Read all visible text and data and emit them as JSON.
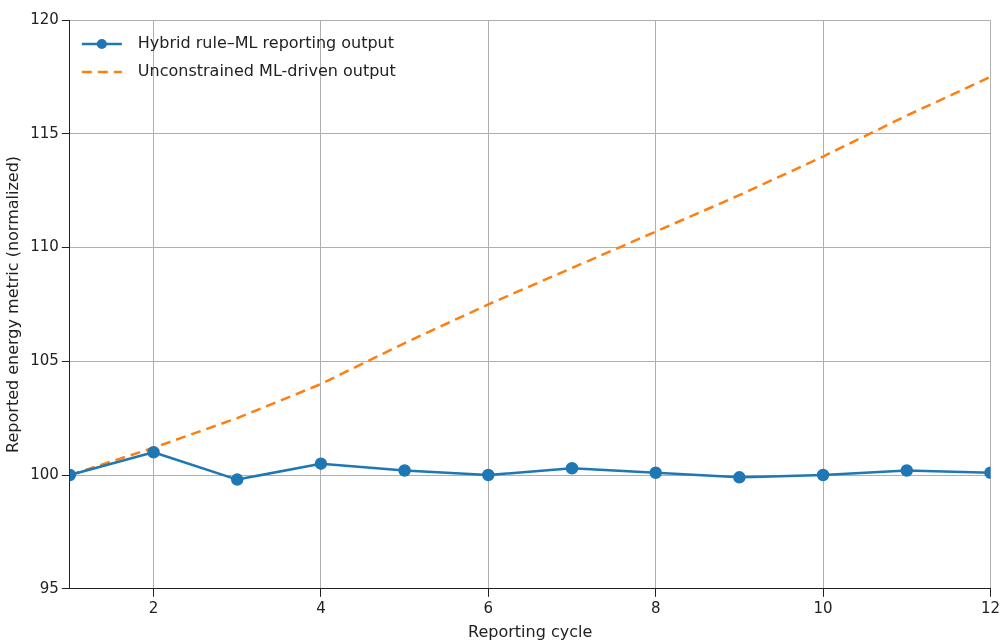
{
  "chart_data": {
    "type": "line",
    "xlabel": "Reporting cycle",
    "ylabel": "Reported energy metric (normalized)",
    "x": [
      1,
      2,
      3,
      4,
      5,
      6,
      7,
      8,
      9,
      10,
      11,
      12
    ],
    "series": [
      {
        "name": "Hybrid rule–ML reporting output",
        "color": "#1f77b4",
        "marker": "circle",
        "line_style": "solid",
        "values": [
          100,
          101.0,
          99.8,
          100.5,
          100.2,
          100.0,
          100.3,
          100.1,
          99.9,
          100.0,
          100.2,
          100.1
        ]
      },
      {
        "name": "Unconstrained ML-driven output",
        "color": "#ff7f0e",
        "marker": "none",
        "line_style": "dashed",
        "values": [
          100,
          101.2,
          102.5,
          104.0,
          105.8,
          107.5,
          109.1,
          110.7,
          112.3,
          114.0,
          115.8,
          117.5
        ]
      }
    ],
    "xlim": [
      1,
      12
    ],
    "xticks": [
      2,
      4,
      6,
      8,
      10,
      12
    ],
    "ylim": [
      95,
      120
    ],
    "yticks": [
      95,
      100,
      105,
      110,
      115,
      120
    ],
    "grid": true,
    "legend": "top left"
  }
}
